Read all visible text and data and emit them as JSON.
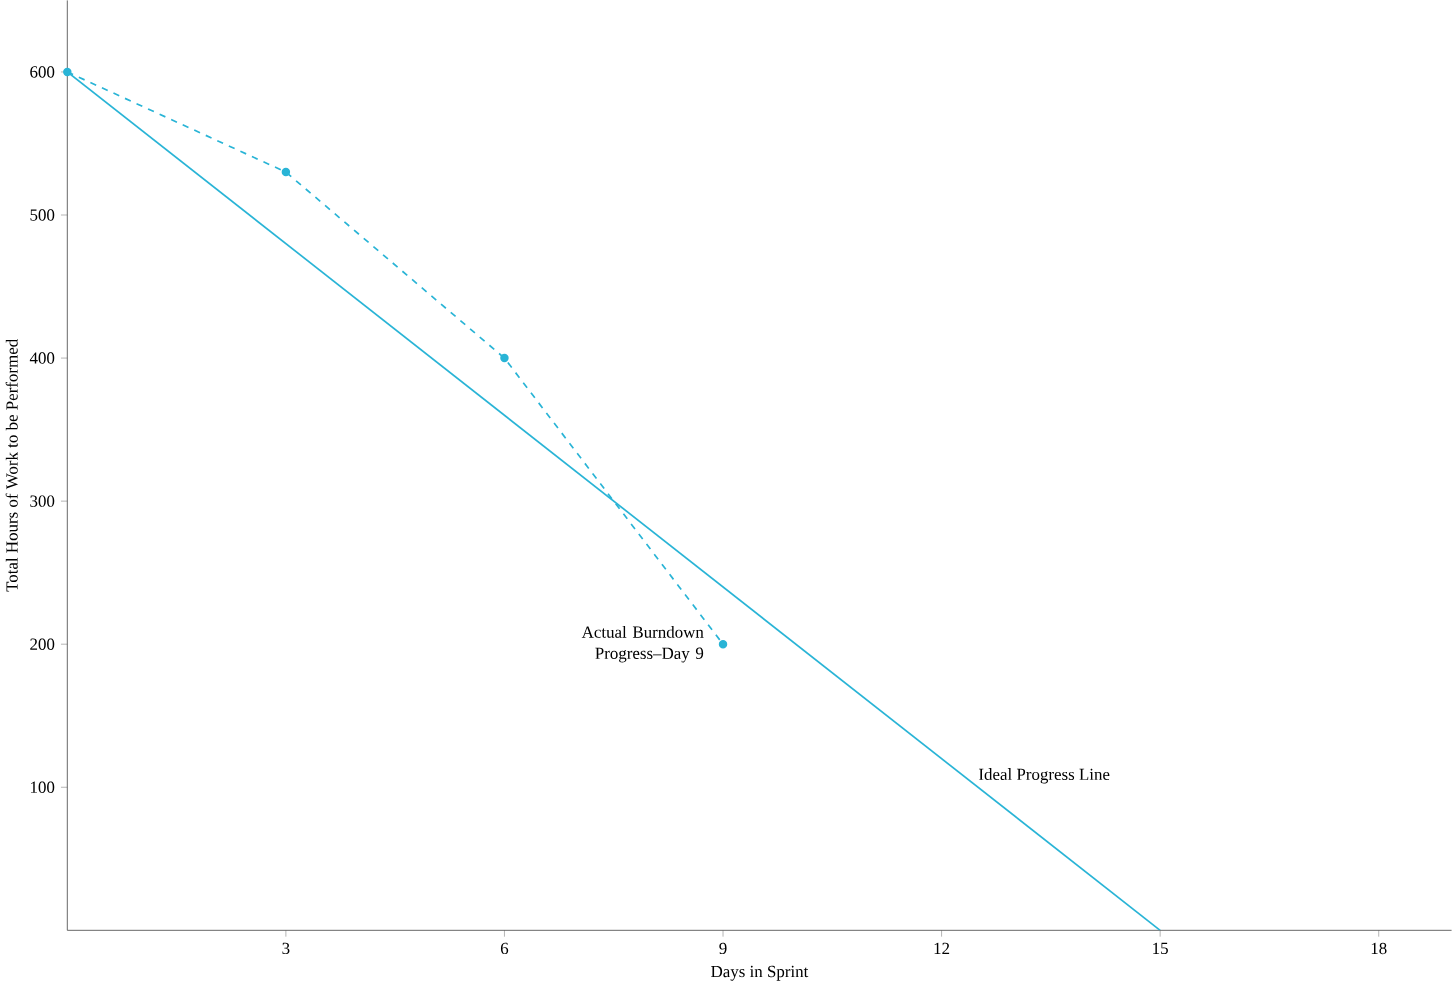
{
  "chart_data": {
    "type": "line",
    "xlabel": "Days in Sprint",
    "ylabel": "Total Hours of Work to be Performed",
    "xlim": [
      0,
      19
    ],
    "ylim": [
      0,
      650
    ],
    "xticks": [
      3,
      6,
      9,
      12,
      15,
      18
    ],
    "yticks": [
      100,
      200,
      300,
      400,
      500,
      600
    ],
    "grid": false,
    "legend": false,
    "series": [
      {
        "name": "Actual Burndown Progress–Day 9",
        "color": "#29b4d6",
        "x": [
          0,
          3,
          6,
          9
        ],
        "values": [
          600,
          530,
          400,
          200
        ],
        "line_style": "dashed",
        "marker": "circle"
      },
      {
        "name": "Ideal Progress Line",
        "color": "#29b4d6",
        "x": [
          0,
          15
        ],
        "values": [
          600,
          0
        ],
        "line_style": "solid",
        "marker": "none"
      }
    ]
  }
}
